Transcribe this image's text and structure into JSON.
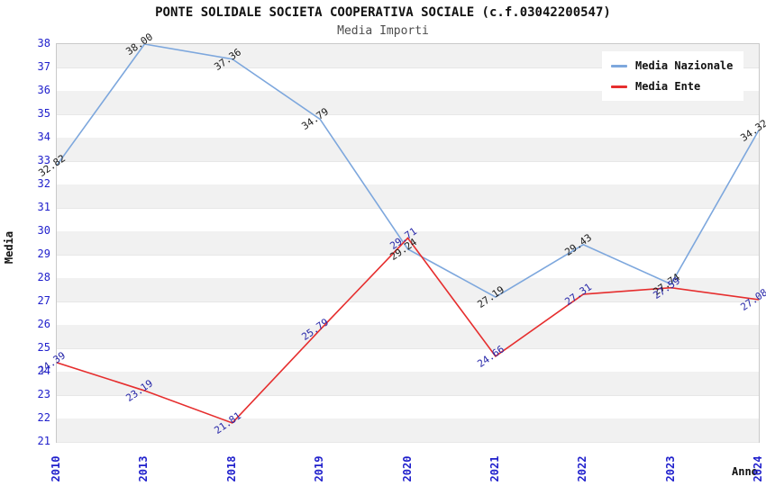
{
  "header": {
    "title": "PONTE SOLIDALE SOCIETA COOPERATIVA SOCIALE (c.f.03042200547)",
    "subtitle": "Media Importi"
  },
  "chart_data": {
    "type": "line",
    "title": "PONTE SOLIDALE SOCIETA COOPERATIVA SOCIALE (c.f.03042200547)",
    "subtitle": "Media Importi",
    "xlabel": "Anno",
    "ylabel": "Media",
    "x": [
      "2010",
      "2013",
      "2018",
      "2019",
      "2020",
      "2021",
      "2022",
      "2023",
      "2024"
    ],
    "series": [
      {
        "name": "Media Nazionale",
        "color": "#7da7dd",
        "label_color": "#1a1a1a",
        "values": [
          32.82,
          38.0,
          37.36,
          34.79,
          29.24,
          27.19,
          29.43,
          27.74,
          34.32
        ]
      },
      {
        "name": "Media Ente",
        "color": "#e62e2e",
        "label_color": "#2525a8",
        "values": [
          24.39,
          23.19,
          21.81,
          25.79,
          29.71,
          24.66,
          27.31,
          27.59,
          27.08
        ]
      }
    ],
    "ylim": [
      21,
      38
    ],
    "ytick_step": 1,
    "grid": "alternating-horizontal-bands",
    "legend_position": "top-right",
    "axis_tick_color": "#2020cc",
    "band_color": "#f1f1f1"
  },
  "legend": {
    "items": [
      {
        "label": "Media Nazionale",
        "color": "#7da7dd"
      },
      {
        "label": "Media Ente",
        "color": "#e62e2e"
      }
    ]
  }
}
